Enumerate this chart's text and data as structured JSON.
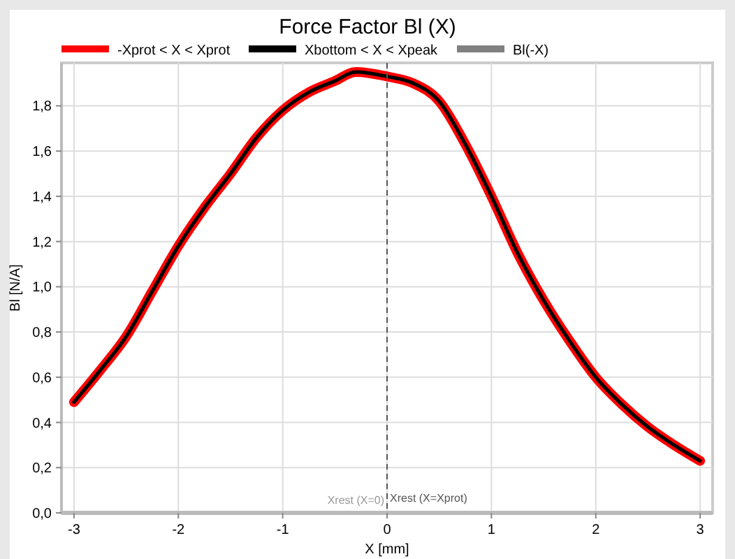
{
  "chart_data": {
    "type": "line",
    "title": "Force Factor Bl (X)",
    "xlabel": "X [mm]",
    "ylabel": "Bl [N/A]",
    "x": [
      -3,
      -2.75,
      -2.5,
      -2.25,
      -2,
      -1.75,
      -1.5,
      -1.25,
      -1,
      -0.75,
      -0.5,
      -0.3,
      0,
      0.25,
      0.5,
      0.75,
      1,
      1.25,
      1.5,
      1.75,
      2,
      2.25,
      2.5,
      2.75,
      3
    ],
    "series": [
      {
        "name": "-Xprot < X < Xprot",
        "color": "#ff0000",
        "values": [
          0.49,
          0.63,
          0.78,
          0.98,
          1.18,
          1.35,
          1.5,
          1.66,
          1.78,
          1.86,
          1.91,
          1.95,
          1.93,
          1.9,
          1.82,
          1.63,
          1.4,
          1.15,
          0.94,
          0.76,
          0.6,
          0.48,
          0.38,
          0.3,
          0.23
        ]
      },
      {
        "name": "Xbottom < X < Xpeak",
        "color": "#000000",
        "values": [
          0.49,
          0.63,
          0.78,
          0.98,
          1.18,
          1.35,
          1.5,
          1.66,
          1.78,
          1.86,
          1.91,
          1.95,
          1.93,
          1.9,
          1.82,
          1.63,
          1.4,
          1.15,
          0.94,
          0.76,
          0.6,
          0.48,
          0.38,
          0.3,
          0.23
        ]
      },
      {
        "name": "Bl(-X)",
        "color": "#808080",
        "values": [
          null,
          null,
          null,
          null,
          null,
          null,
          null,
          null,
          null,
          null,
          null,
          null,
          null,
          null,
          null,
          null,
          null,
          null,
          null,
          null,
          null,
          null,
          null,
          null,
          null
        ]
      }
    ],
    "xlim": [
      -3.12,
      3.12
    ],
    "xticks": [
      -3,
      -2,
      -1,
      0,
      1,
      2,
      3
    ],
    "ylim": [
      0,
      1.99
    ],
    "yticks": [
      {
        "value": 0,
        "label": "0,0"
      },
      {
        "value": 0.2,
        "label": "0,2"
      },
      {
        "value": 0.4,
        "label": "0,4"
      },
      {
        "value": 0.6,
        "label": "0,6"
      },
      {
        "value": 0.8,
        "label": "0,8"
      },
      {
        "value": 1,
        "label": "1,0"
      },
      {
        "value": 1.2,
        "label": "1,2"
      },
      {
        "value": 1.4,
        "label": "1,4"
      },
      {
        "value": 1.6,
        "label": "1,6"
      },
      {
        "value": 1.8,
        "label": "1,8"
      }
    ],
    "ref_lines": [
      {
        "axis": "x",
        "value": 0,
        "label": "Xrest (X=Xprot)",
        "color": "#555555",
        "line_style": "dashed"
      }
    ],
    "annotations": [
      {
        "text": "Xrest (X=0)",
        "x": 0,
        "y": 0.06
      }
    ],
    "grid": true,
    "legend": "top",
    "line_style": "solid"
  }
}
